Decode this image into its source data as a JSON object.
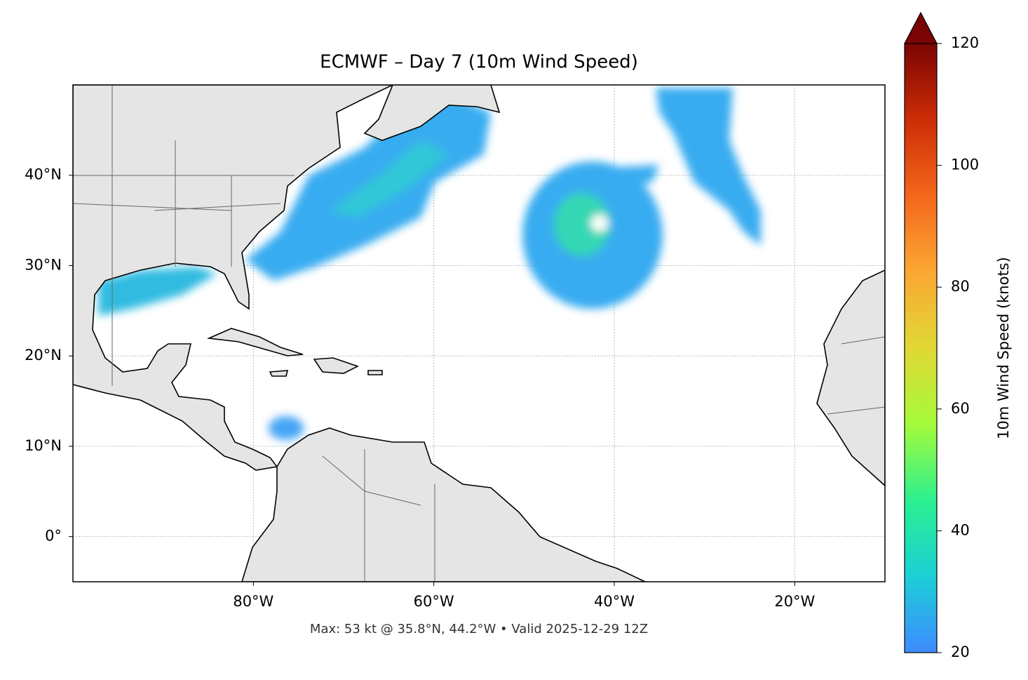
{
  "chart_data": {
    "type": "map",
    "title": "ECMWF – Day 7 (10m Wind Speed)",
    "footer": "Max: 53 kt @ 35.8°N, 44.2°W • Valid 2025-12-29 12Z",
    "xlim": [
      -100,
      -10
    ],
    "ylim": [
      -5,
      50
    ],
    "xticks": [
      {
        "value": -80,
        "label": "80°W"
      },
      {
        "value": -60,
        "label": "60°W"
      },
      {
        "value": -40,
        "label": "40°W"
      },
      {
        "value": -20,
        "label": "20°W"
      }
    ],
    "yticks": [
      {
        "value": 0,
        "label": "0°"
      },
      {
        "value": 10,
        "label": "10°N"
      },
      {
        "value": 20,
        "label": "20°N"
      },
      {
        "value": 30,
        "label": "30°N"
      },
      {
        "value": 40,
        "label": "40°N"
      }
    ],
    "grid": true,
    "colorbar": {
      "label": "10m Wind Speed (knots)",
      "lim": [
        20,
        120
      ],
      "ticks": [
        20,
        40,
        60,
        80,
        100,
        120
      ],
      "colormap": [
        "#3e8bff",
        "#1ccfd6",
        "#2cf08f",
        "#a4fb3a",
        "#e0d834",
        "#fba733",
        "#f4671b",
        "#cd2d06",
        "#7a0403"
      ]
    }
  }
}
